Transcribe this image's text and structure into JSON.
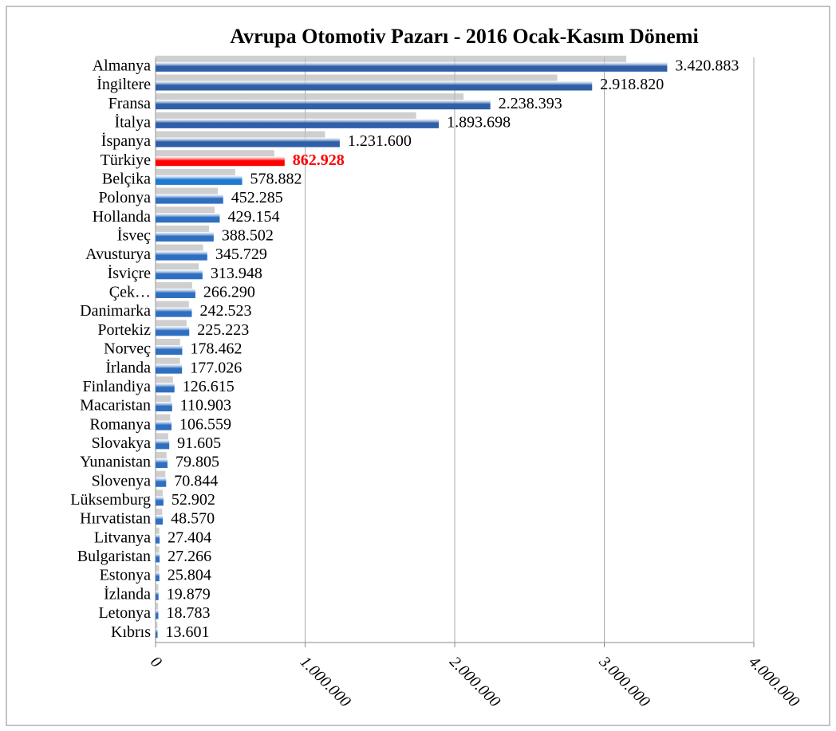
{
  "chart_data": {
    "type": "bar",
    "orientation": "horizontal",
    "title": "Avrupa Otomotiv Pazarı - 2016 Ocak-Kasım Dönemi",
    "categories": [
      "Almanya",
      "İngiltere",
      "Fransa",
      "İtalya",
      "İspanya",
      "Türkiye",
      "Belçika",
      "Polonya",
      "Hollanda",
      "İsveç",
      "Avusturya",
      "İsviçre",
      "Çek…",
      "Danimarka",
      "Portekiz",
      "Norveç",
      "İrlanda",
      "Finlandiya",
      "Macaristan",
      "Romanya",
      "Slovakya",
      "Yunanistan",
      "Slovenya",
      "Lüksemburg",
      "Hırvatistan",
      "Litvanya",
      "Bulgaristan",
      "Estonya",
      "İzlanda",
      "Letonya",
      "Kıbrıs"
    ],
    "values": [
      3420883,
      2918820,
      2238393,
      1893698,
      1231600,
      862928,
      578882,
      452285,
      429154,
      388502,
      345729,
      313948,
      266290,
      242523,
      225223,
      178462,
      177026,
      126615,
      110903,
      106559,
      91605,
      79805,
      70844,
      52902,
      48570,
      27404,
      27266,
      25804,
      19879,
      18783,
      13601
    ],
    "value_labels": [
      "3.420.883",
      "2.918.820",
      "2.238.393",
      "1.893.698",
      "1.231.600",
      "862.928",
      "578.882",
      "452.285",
      "429.154",
      "388.502",
      "345.729",
      "313.948",
      "266.290",
      "242.523",
      "225.223",
      "178.462",
      "177.026",
      "126.615",
      "110.903",
      "106.559",
      "91.605",
      "79.805",
      "70.844",
      "52.902",
      "48.570",
      "27.404",
      "27.266",
      "25.804",
      "19.879",
      "18.783",
      "13.601"
    ],
    "colors": [
      "#2f5fa6",
      "#2f5fa6",
      "#2f5fa6",
      "#2f5fa6",
      "#2f5fa6",
      "#ff0000",
      "#1f7bd0",
      "#2f6fc0",
      "#2f6fc0",
      "#2f6fc0",
      "#2f6fc0",
      "#2f6fc0",
      "#2f6fc0",
      "#2f6fc0",
      "#2f6fc0",
      "#2f6fc0",
      "#2f6fc0",
      "#2f6fc0",
      "#2f6fc0",
      "#2f6fc0",
      "#2f6fc0",
      "#2f6fc0",
      "#2f6fc0",
      "#2f6fc0",
      "#2f6fc0",
      "#2f6fc0",
      "#2f6fc0",
      "#2f6fc0",
      "#2f6fc0",
      "#2f6fc0",
      "#2f6fc0"
    ],
    "highlight": "Türkiye",
    "xlim": [
      0,
      4000000
    ],
    "xticks": [
      0,
      {
        "value": 1000000,
        "label": "1.000.000"
      },
      {
        "value": 2000000,
        "label": "2.000.000"
      },
      {
        "value": 3000000,
        "label": "3.000.000"
      },
      {
        "value": 4000000,
        "label": "4.000.000"
      }
    ],
    "grid": true
  }
}
